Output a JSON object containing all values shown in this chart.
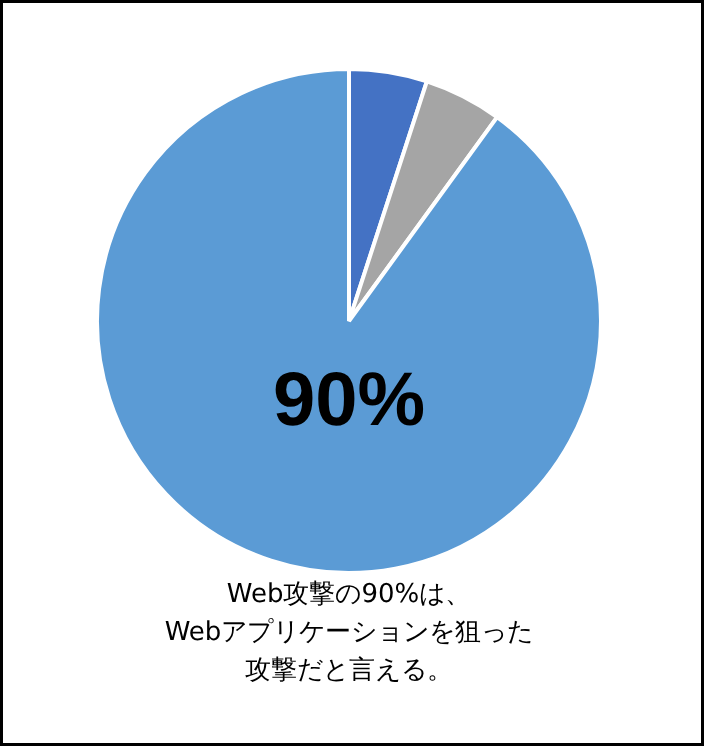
{
  "chart_data": {
    "type": "pie",
    "categories": [
      null,
      null,
      null
    ],
    "values": [
      5,
      5,
      90
    ],
    "colors": [
      "#4472c4",
      "#a5a5a5",
      "#5b9bd5"
    ],
    "value_labels": [
      null,
      null,
      "90%"
    ],
    "annotations": [
      "Web攻撃の90%は、",
      "Webアプリケーションを狙った",
      "攻撃だと言える。"
    ]
  }
}
